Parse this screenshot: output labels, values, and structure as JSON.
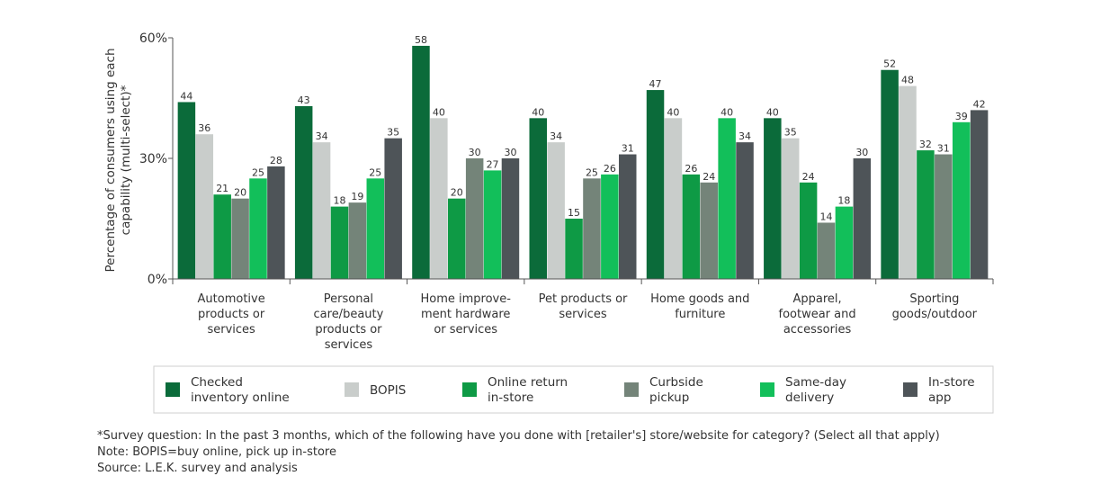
{
  "chart_data": {
    "type": "bar",
    "ylabel_lines": [
      "Percentage of consumers using each",
      "capability (multi-select)*"
    ],
    "ylim": [
      0,
      60
    ],
    "yticks": [
      {
        "v": 0,
        "label": "0%"
      },
      {
        "v": 30,
        "label": "30%"
      },
      {
        "v": 60,
        "label": "60%"
      }
    ],
    "categories": [
      [
        "Automotive",
        "products or",
        "services"
      ],
      [
        "Personal",
        "care/beauty",
        "products or",
        "services"
      ],
      [
        "Home improve-",
        "ment hardware",
        "or services"
      ],
      [
        "Pet products or",
        "services"
      ],
      [
        "Home goods and",
        "furniture"
      ],
      [
        "Apparel,",
        "footwear and",
        "accessories"
      ],
      [
        "Sporting",
        "goods/outdoor"
      ]
    ],
    "series": [
      {
        "name_lines": [
          "Checked",
          "inventory online"
        ],
        "color": "#0b6b3a",
        "values": [
          44,
          43,
          58,
          40,
          47,
          40,
          52
        ]
      },
      {
        "name_lines": [
          "BOPIS"
        ],
        "color": "#c9cdcb",
        "values": [
          36,
          34,
          40,
          34,
          40,
          35,
          48
        ]
      },
      {
        "name_lines": [
          "Online return",
          "in-store"
        ],
        "color": "#0e9a45",
        "values": [
          21,
          18,
          20,
          15,
          26,
          24,
          32
        ]
      },
      {
        "name_lines": [
          "Curbside",
          "pickup"
        ],
        "color": "#748479",
        "values": [
          20,
          19,
          30,
          25,
          24,
          14,
          31
        ]
      },
      {
        "name_lines": [
          "Same-day",
          "delivery"
        ],
        "color": "#12bf5a",
        "values": [
          25,
          25,
          27,
          26,
          40,
          18,
          39
        ]
      },
      {
        "name_lines": [
          "In-store",
          "app"
        ],
        "color": "#4e5458",
        "values": [
          28,
          35,
          30,
          31,
          34,
          30,
          42
        ]
      }
    ],
    "legend_position": "bottom",
    "grid": false
  },
  "footnotes": [
    "*Survey question: In the past 3 months, which of the following have you done with [retailer's] store/website for category? (Select all that apply)",
    "Note: BOPIS=buy online, pick up in-store",
    "Source: L.E.K. survey and analysis"
  ]
}
